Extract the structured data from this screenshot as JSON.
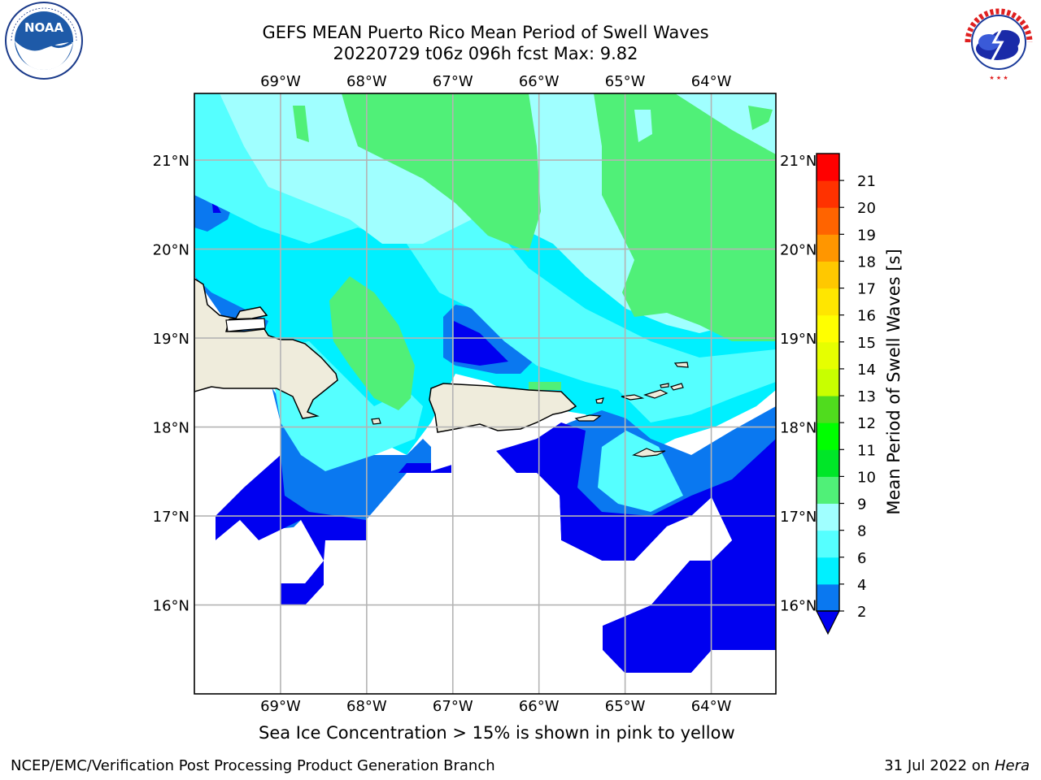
{
  "title": {
    "line1": "GEFS MEAN Puerto Rico Mean Period of Swell Waves",
    "line2": "20220729 t06z 096h fcst   Max: 9.82"
  },
  "logos": {
    "noaa": {
      "text": "NOAA",
      "icon": "noaa-logo"
    },
    "nws": {
      "text": "NATIONAL WEATHER SERVICE",
      "icon": "nws-logo"
    }
  },
  "map": {
    "lon_labels": [
      "69°W",
      "68°W",
      "67°W",
      "66°W",
      "65°W",
      "64°W"
    ],
    "lat_labels": [
      "21°N",
      "20°N",
      "19°N",
      "18°N",
      "17°N",
      "16°N"
    ],
    "lon_range": [
      -70.0,
      -63.25
    ],
    "lat_range": [
      15.0,
      21.75
    ],
    "colors": {
      "land": "#efecdc",
      "sea_missing": "#ffffff",
      "grid": "#b4b4b4"
    }
  },
  "colorbar": {
    "label": "Mean Period of Swell Waves [s]",
    "ticks": [
      "2",
      "4",
      "6",
      "8",
      "9",
      "10",
      "11",
      "12",
      "13",
      "14",
      "15",
      "16",
      "17",
      "18",
      "19",
      "20",
      "21"
    ],
    "levels": [
      {
        "from": 2,
        "to": 4,
        "color": "#0a78f0"
      },
      {
        "from": 4,
        "to": 6,
        "color": "#00f0ff"
      },
      {
        "from": 6,
        "to": 8,
        "color": "#55ffff"
      },
      {
        "from": 8,
        "to": 9,
        "color": "#a0ffff"
      },
      {
        "from": 9,
        "to": 10,
        "color": "#50f078"
      },
      {
        "from": 10,
        "to": 11,
        "color": "#00e628"
      },
      {
        "from": 11,
        "to": 12,
        "color": "#00ff00"
      },
      {
        "from": 12,
        "to": 13,
        "color": "#50dc1e"
      },
      {
        "from": 13,
        "to": 14,
        "color": "#c8ff00"
      },
      {
        "from": 14,
        "to": 15,
        "color": "#e6ff00"
      },
      {
        "from": 15,
        "to": 16,
        "color": "#ffff00"
      },
      {
        "from": 16,
        "to": 17,
        "color": "#ffe600"
      },
      {
        "from": 17,
        "to": 18,
        "color": "#ffc800"
      },
      {
        "from": 18,
        "to": 19,
        "color": "#ff9600"
      },
      {
        "from": 19,
        "to": 20,
        "color": "#ff6400"
      },
      {
        "from": 20,
        "to": 21,
        "color": "#ff3200"
      },
      {
        "from": 21,
        "to": 22,
        "color": "#ff0000"
      }
    ],
    "under_color": "#0000f0"
  },
  "caption": "Sea Ice Concentration > 15% is shown in pink to yellow",
  "footer": {
    "left": "NCEP/EMC/Verification Post Processing Product Generation Branch",
    "right_prefix": "31 Jul 2022 on ",
    "right_host": "Hera"
  }
}
